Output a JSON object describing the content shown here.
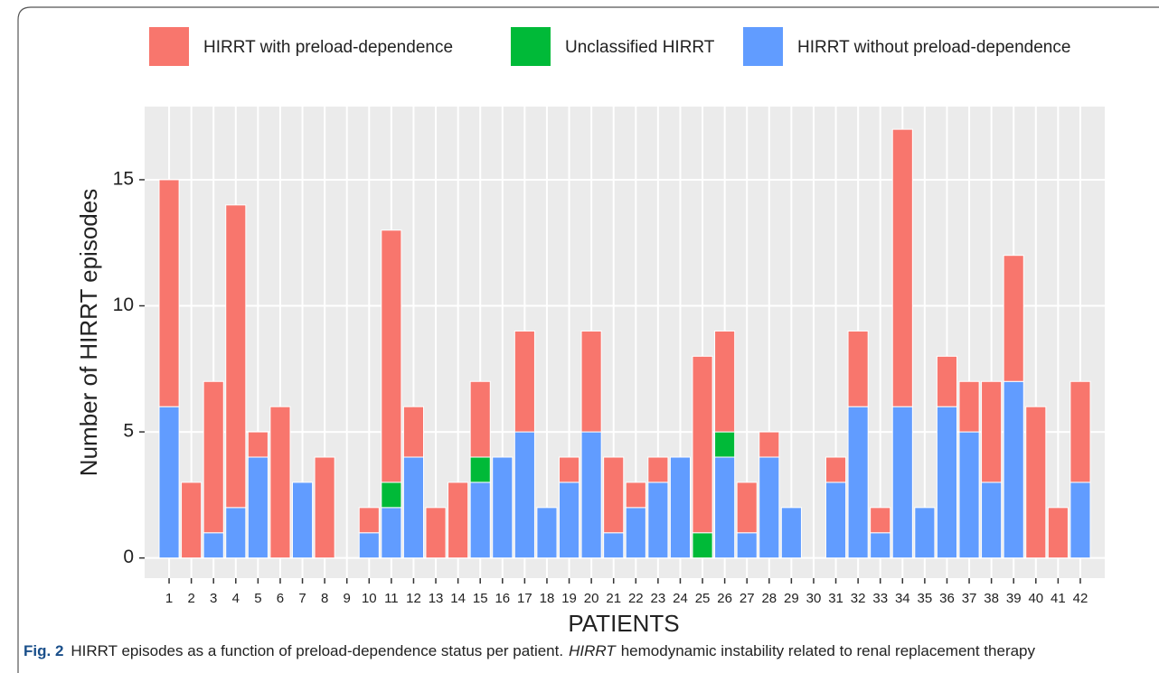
{
  "chart_data": {
    "type": "stacked-bar",
    "x_label": "PATIENTS",
    "y_label": "Number of HIRRT episodes",
    "categories": [
      "1",
      "2",
      "3",
      "4",
      "5",
      "6",
      "7",
      "8",
      "9",
      "10",
      "11",
      "12",
      "13",
      "14",
      "15",
      "16",
      "17",
      "18",
      "19",
      "20",
      "21",
      "22",
      "23",
      "24",
      "25",
      "26",
      "27",
      "28",
      "29",
      "30",
      "31",
      "32",
      "33",
      "34",
      "35",
      "36",
      "37",
      "38",
      "39",
      "40",
      "41",
      "42"
    ],
    "series": [
      {
        "name": "HIRRT with preload-dependence",
        "color": "#f8766d",
        "values": [
          9,
          3,
          6,
          12,
          1,
          6,
          0,
          4,
          0,
          1,
          10,
          2,
          2,
          3,
          3,
          0,
          4,
          0,
          1,
          4,
          3,
          1,
          1,
          0,
          7,
          4,
          2,
          1,
          0,
          0,
          1,
          3,
          1,
          11,
          0,
          2,
          2,
          4,
          5,
          6,
          2,
          4
        ]
      },
      {
        "name": "Unclassified HIRRT",
        "color": "#00ba38",
        "values": [
          0,
          0,
          0,
          0,
          0,
          0,
          0,
          0,
          0,
          0,
          1,
          0,
          0,
          0,
          1,
          0,
          0,
          0,
          0,
          0,
          0,
          0,
          0,
          0,
          1,
          1,
          0,
          0,
          0,
          0,
          0,
          0,
          0,
          0,
          0,
          0,
          0,
          0,
          0,
          0,
          0,
          0
        ]
      },
      {
        "name": "HIRRT without preload-dependence",
        "color": "#619cff",
        "values": [
          6,
          0,
          1,
          2,
          4,
          0,
          3,
          0,
          0,
          1,
          2,
          4,
          0,
          0,
          3,
          4,
          5,
          2,
          3,
          5,
          1,
          2,
          3,
          4,
          0,
          4,
          1,
          4,
          2,
          0,
          3,
          6,
          1,
          6,
          2,
          6,
          5,
          3,
          7,
          0,
          0,
          3
        ]
      }
    ],
    "ylim": [
      -0.8,
      17.9
    ],
    "yticks": [
      0,
      5,
      10,
      15
    ],
    "grid": true,
    "caption": {
      "label": "Fig. 2",
      "text": "HIRRT episodes as a function of preload-dependence status per patient.",
      "abbreviation": "HIRRT",
      "definition": "hemodynamic instability related to renal replacement therapy"
    }
  }
}
